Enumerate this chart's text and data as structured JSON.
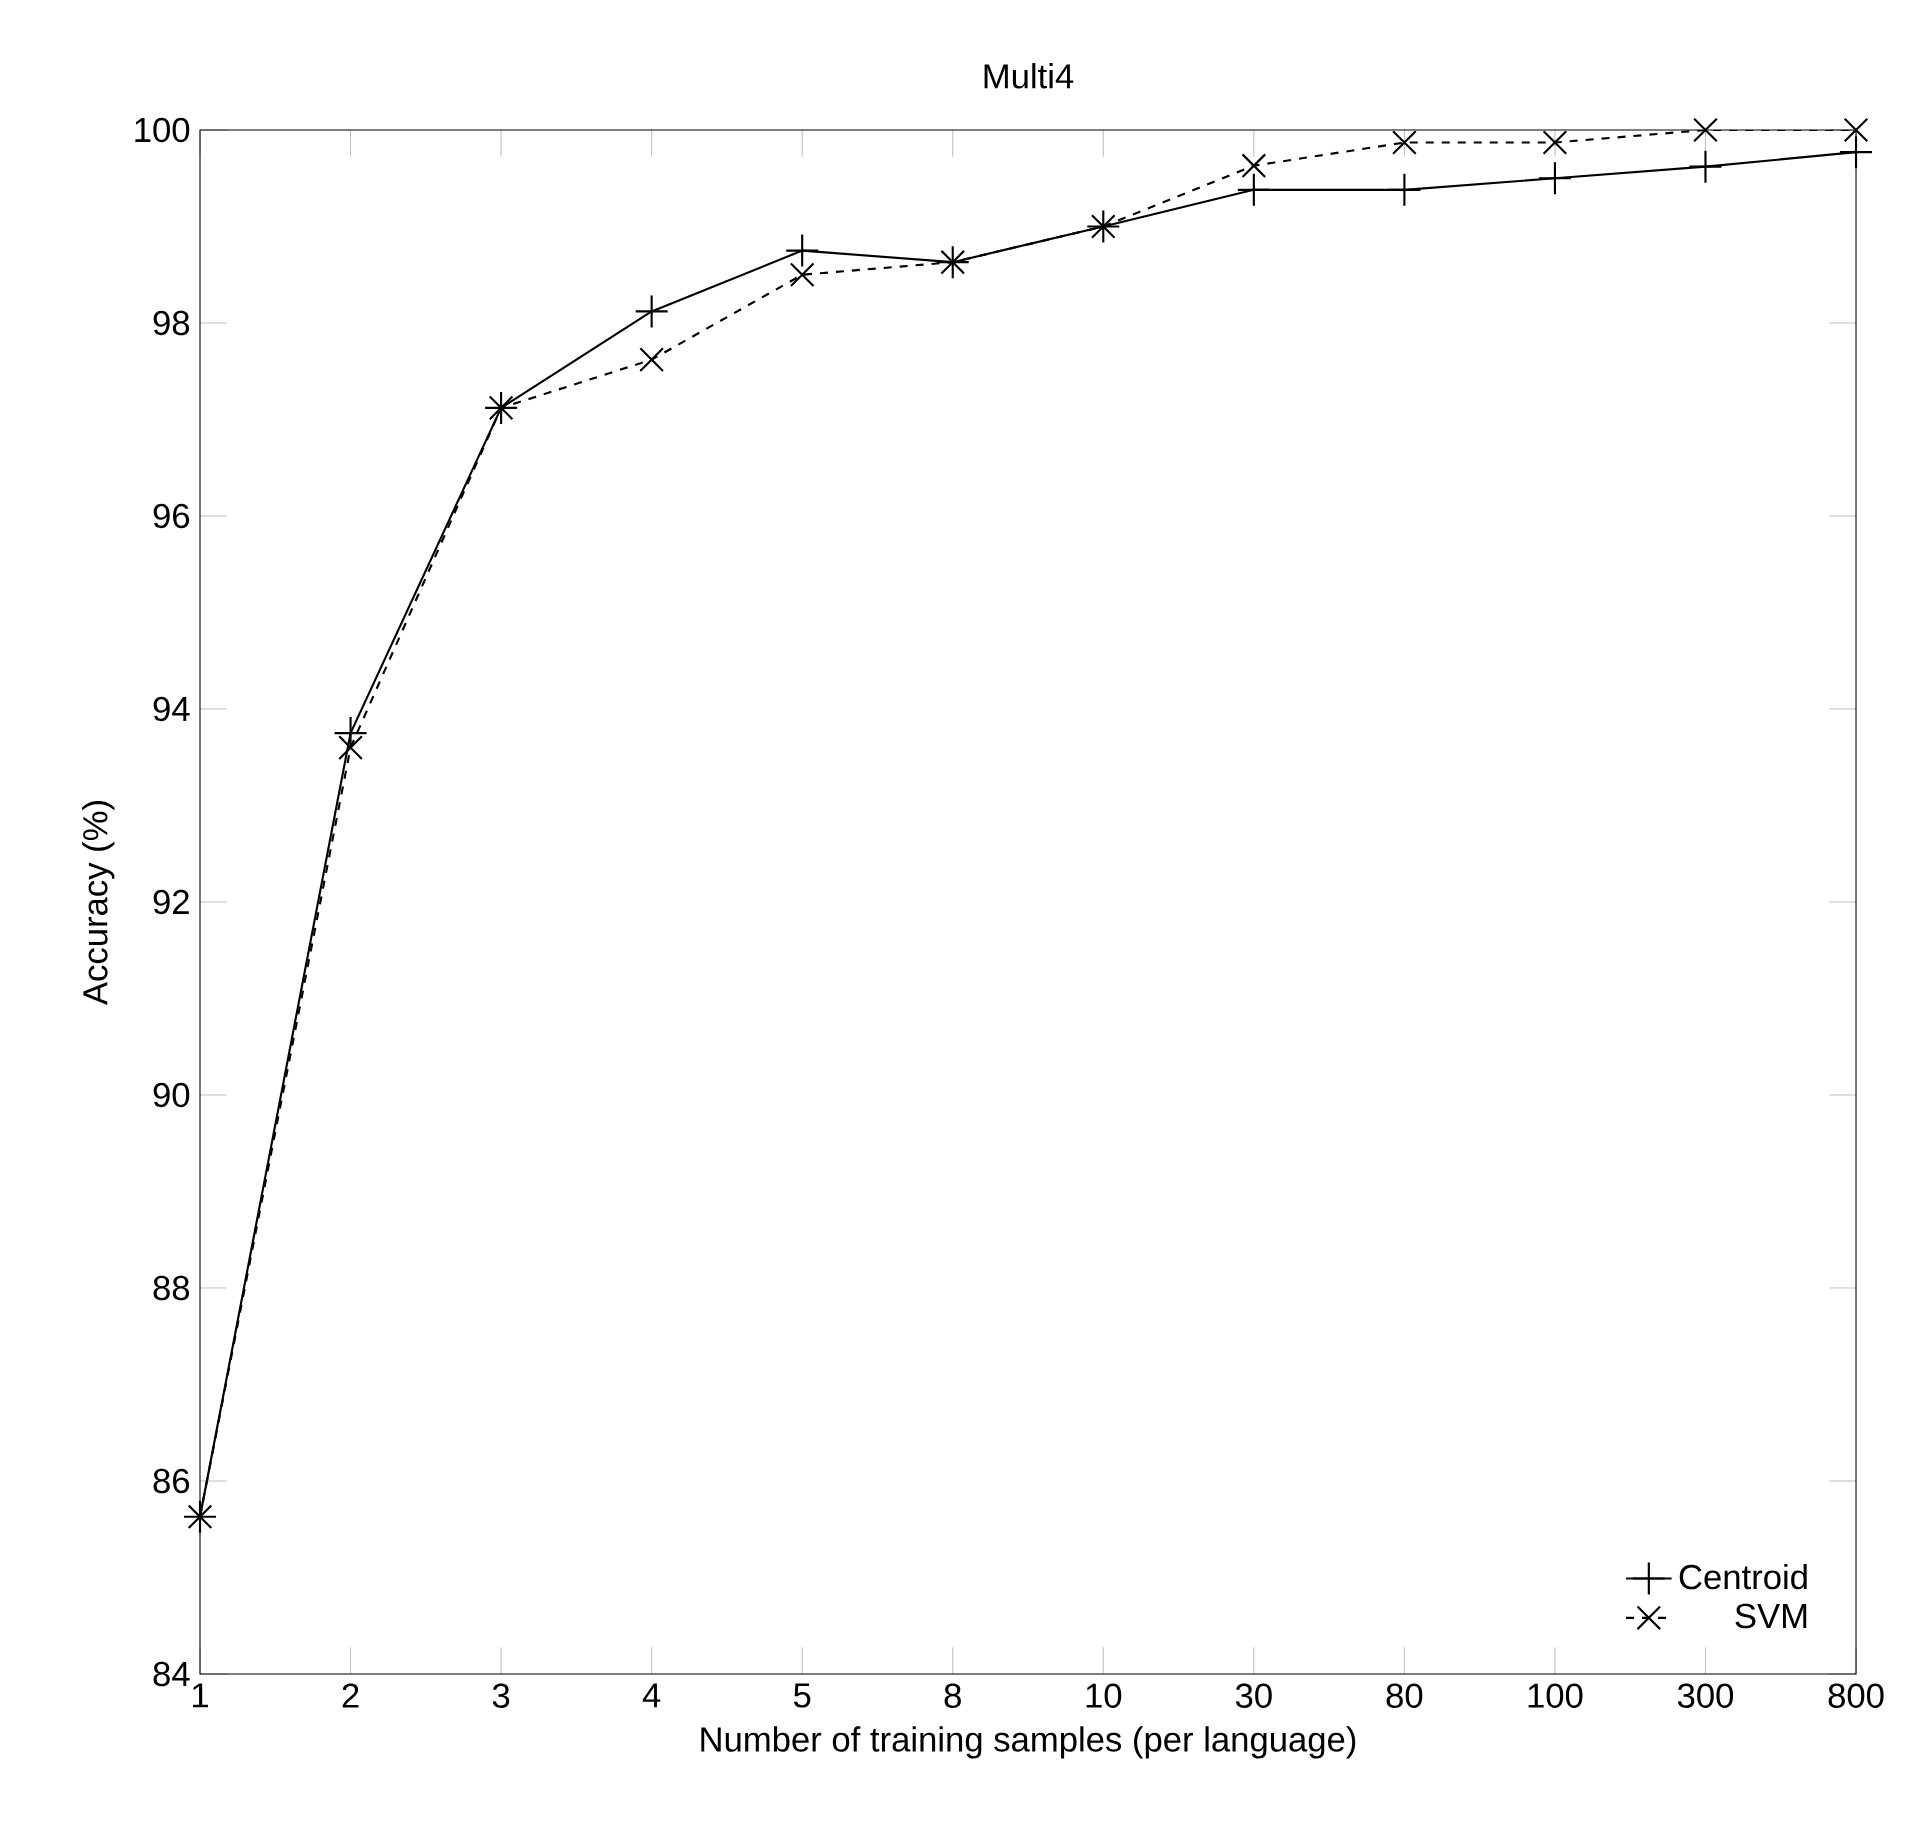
{
  "chart_data": {
    "type": "line",
    "title": "Multi4",
    "xlabel": "Number of training samples (per language)",
    "ylabel": "Accuracy (%)",
    "categories": [
      "1",
      "2",
      "3",
      "4",
      "5",
      "8",
      "10",
      "30",
      "80",
      "100",
      "300",
      "800"
    ],
    "ylim": [
      84,
      100
    ],
    "yticks": [
      84,
      86,
      88,
      90,
      92,
      94,
      96,
      98,
      100
    ],
    "grid": false,
    "legend": "bottom right",
    "series": [
      {
        "name": "Centroid",
        "color": "#000000",
        "marker": "plus",
        "line_style": "solid",
        "values": [
          85.63,
          93.75,
          97.12,
          98.12,
          98.75,
          98.63,
          99.0,
          99.38,
          99.38,
          99.5,
          99.62,
          99.77
        ]
      },
      {
        "name": "SVM",
        "color": "#000000",
        "marker": "cross",
        "line_style": "dashed",
        "values": [
          85.63,
          93.6,
          97.12,
          97.62,
          98.5,
          98.63,
          99.0,
          99.63,
          99.87,
          99.87,
          100,
          100
        ]
      }
    ]
  }
}
